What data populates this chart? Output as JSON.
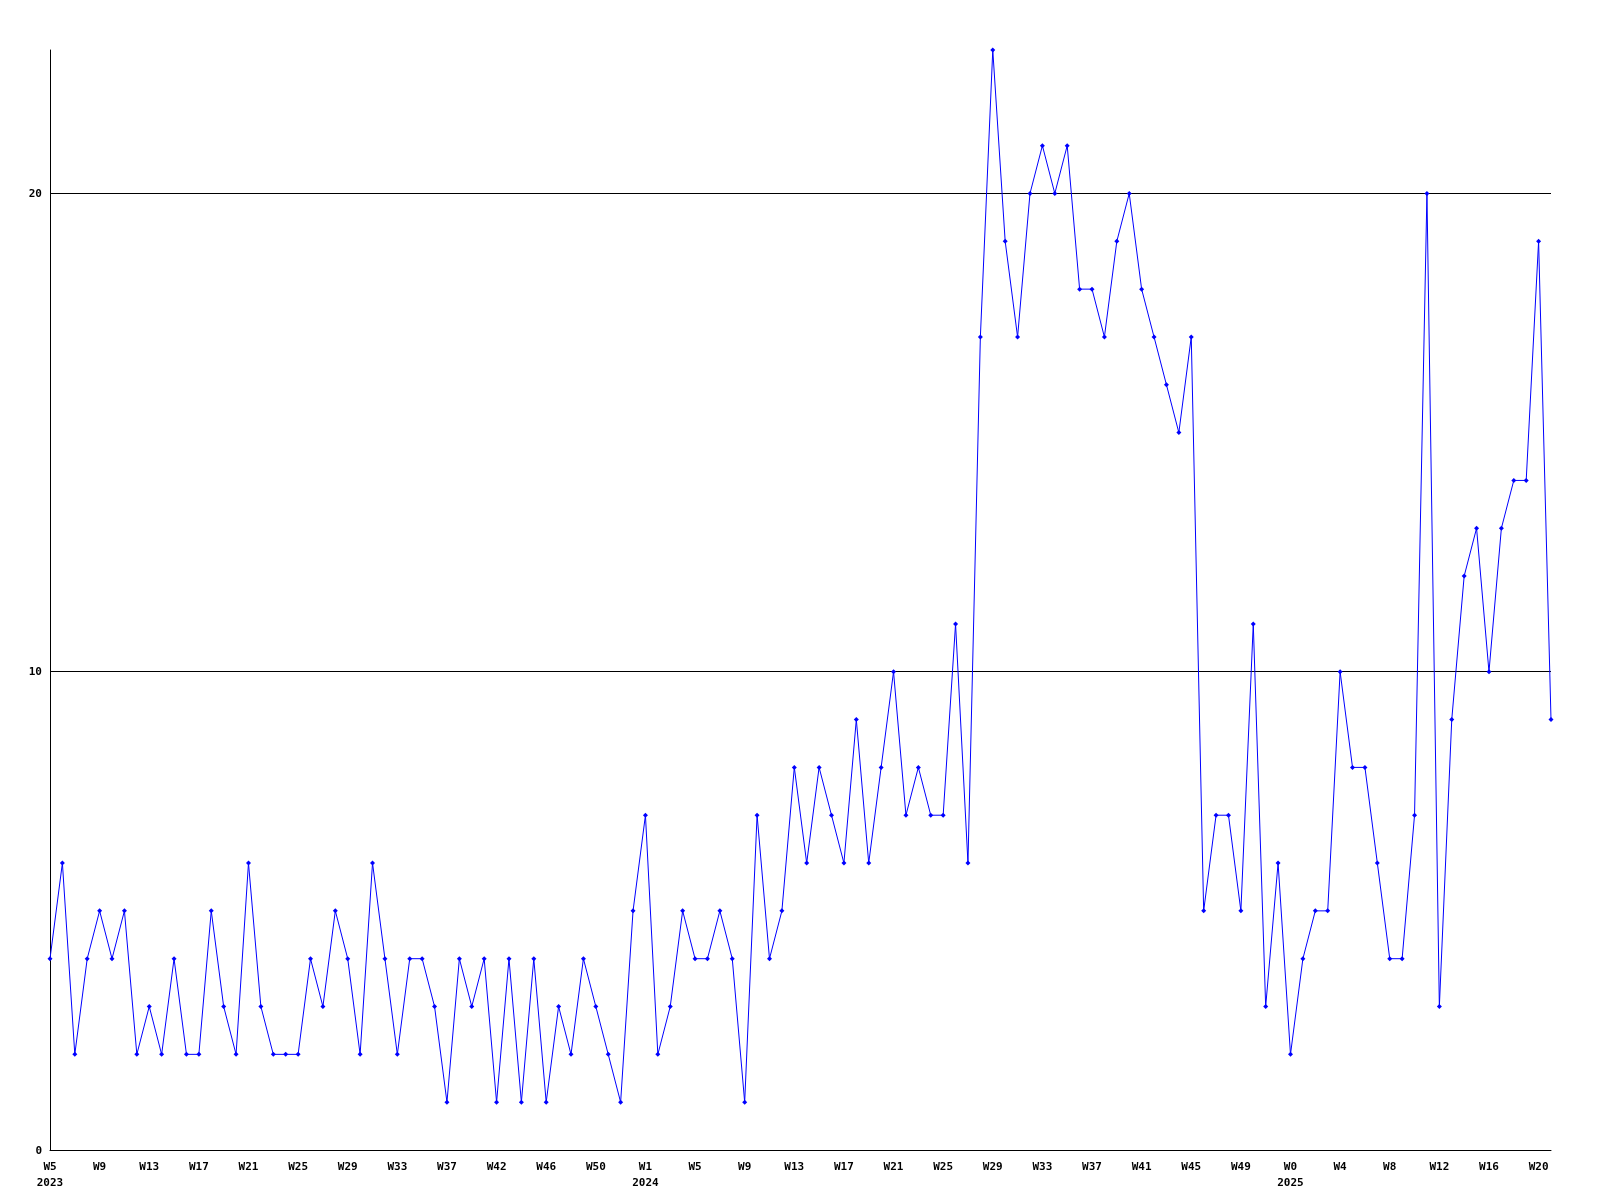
{
  "chart_data": {
    "type": "line",
    "categories": [
      "W5\n2023",
      null,
      null,
      null,
      "W9",
      null,
      null,
      null,
      "W13",
      null,
      null,
      null,
      "W17",
      null,
      null,
      null,
      "W21",
      null,
      null,
      null,
      "W25",
      null,
      null,
      null,
      "W29",
      null,
      null,
      null,
      "W33",
      null,
      null,
      null,
      "W37",
      null,
      null,
      null,
      "W42",
      null,
      null,
      null,
      "W46",
      null,
      null,
      null,
      "W50",
      null,
      null,
      null,
      "W1\n2024",
      null,
      null,
      null,
      "W5",
      null,
      null,
      null,
      "W9",
      null,
      null,
      null,
      "W13",
      null,
      null,
      null,
      "W17",
      null,
      null,
      null,
      "W21",
      null,
      null,
      null,
      "W25",
      null,
      null,
      null,
      "W29",
      null,
      null,
      null,
      "W33",
      null,
      null,
      null,
      "W37",
      null,
      null,
      null,
      "W41",
      null,
      null,
      null,
      "W45",
      null,
      null,
      null,
      "W49",
      null,
      null,
      null,
      "W0\n2025",
      null,
      null,
      null,
      "W4",
      null,
      null,
      null,
      "W8",
      null,
      null,
      null,
      "W12",
      null,
      null,
      null,
      "W16",
      null,
      null,
      null,
      "W20",
      null
    ],
    "series": [
      {
        "color": "#0000ff",
        "values": [
          4,
          6,
          2,
          4,
          5,
          4,
          5,
          2,
          3,
          2,
          4,
          2,
          2,
          5,
          3,
          2,
          6,
          3,
          2,
          2,
          2,
          4,
          3,
          5,
          4,
          2,
          6,
          4,
          2,
          4,
          4,
          3,
          1,
          4,
          3,
          4,
          1,
          4,
          1,
          4,
          1,
          3,
          2,
          4,
          3,
          2,
          1,
          5,
          7,
          2,
          3,
          5,
          4,
          4,
          5,
          4,
          1,
          7,
          4,
          5,
          8,
          6,
          8,
          7,
          6,
          9,
          6,
          8,
          10,
          7,
          8,
          7,
          7,
          11,
          6,
          17,
          23,
          19,
          17,
          20,
          21,
          20,
          21,
          18,
          18,
          17,
          19,
          20,
          18,
          17,
          16,
          15,
          17,
          5,
          7,
          7,
          5,
          11,
          3,
          6,
          2,
          4,
          5,
          5,
          10,
          8,
          8,
          6,
          4,
          4,
          7,
          20,
          3,
          9,
          12,
          13,
          10,
          13,
          14,
          14,
          19,
          9
        ]
      }
    ],
    "ylim": [
      0,
      23
    ],
    "yticks": [
      0,
      10,
      20
    ],
    "grid": "y",
    "marker": "diamond",
    "line_style": "solid"
  }
}
